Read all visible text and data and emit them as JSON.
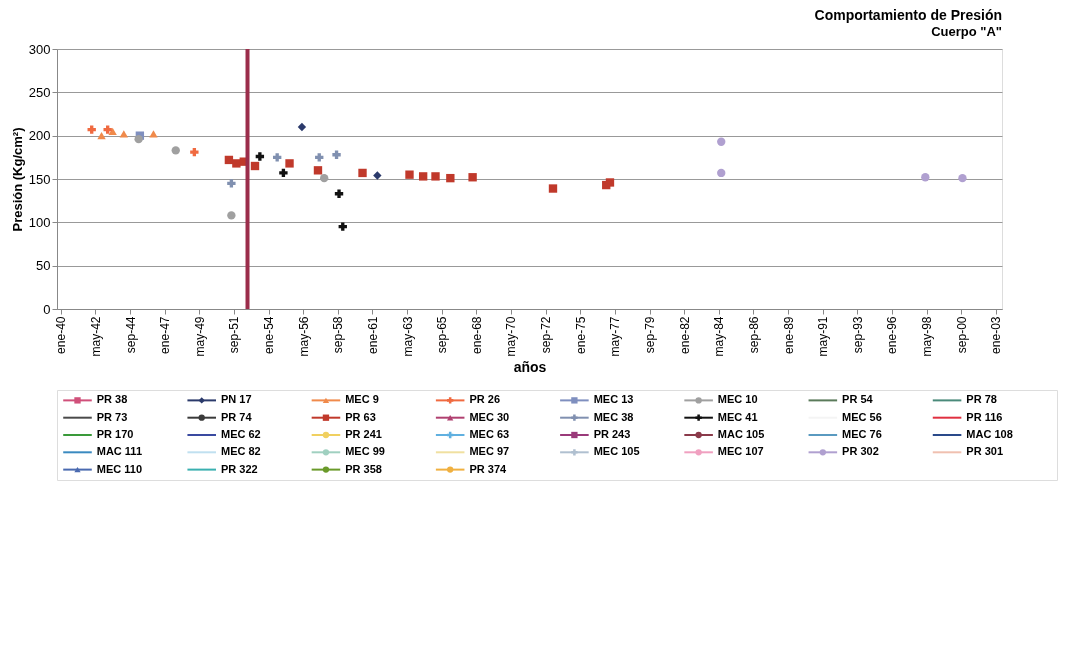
{
  "chart_data": {
    "type": "scatter",
    "title": "Comportamiento de Presión",
    "subtitle": "Cuerpo \"A\"",
    "xlabel": "años",
    "ylabel": "Presión (Kg/cm²)",
    "xlim": [
      "1939-10",
      "2003-06"
    ],
    "ylim": [
      0,
      300
    ],
    "yticks": [
      0,
      50,
      100,
      150,
      200,
      250,
      300
    ],
    "grid": "y",
    "legend": "bottom",
    "xticks": [
      {
        "value": "1940-01",
        "label": "ene-40"
      },
      {
        "value": "1942-05",
        "label": "may-42"
      },
      {
        "value": "1944-09",
        "label": "sep-44"
      },
      {
        "value": "1947-01",
        "label": "ene-47"
      },
      {
        "value": "1949-05",
        "label": "may-49"
      },
      {
        "value": "1951-09",
        "label": "sep-51"
      },
      {
        "value": "1954-01",
        "label": "ene-54"
      },
      {
        "value": "1956-05",
        "label": "may-56"
      },
      {
        "value": "1958-09",
        "label": "sep-58"
      },
      {
        "value": "1961-01",
        "label": "ene-61"
      },
      {
        "value": "1963-05",
        "label": "may-63"
      },
      {
        "value": "1965-09",
        "label": "sep-65"
      },
      {
        "value": "1968-01",
        "label": "ene-68"
      },
      {
        "value": "1970-05",
        "label": "may-70"
      },
      {
        "value": "1972-09",
        "label": "sep-72"
      },
      {
        "value": "1975-01",
        "label": "ene-75"
      },
      {
        "value": "1977-05",
        "label": "may-77"
      },
      {
        "value": "1979-09",
        "label": "sep-79"
      },
      {
        "value": "1982-01",
        "label": "ene-82"
      },
      {
        "value": "1984-05",
        "label": "may-84"
      },
      {
        "value": "1986-09",
        "label": "sep-86"
      },
      {
        "value": "1989-01",
        "label": "ene-89"
      },
      {
        "value": "1991-05",
        "label": "may-91"
      },
      {
        "value": "1993-09",
        "label": "sep-93"
      },
      {
        "value": "1996-01",
        "label": "ene-96"
      },
      {
        "value": "1998-05",
        "label": "may-98"
      },
      {
        "value": "2000-09",
        "label": "sep-00"
      },
      {
        "value": "2003-01",
        "label": "ene-03"
      }
    ],
    "ref_lines": [
      {
        "axis": "x",
        "value": "1952-08",
        "label": null,
        "color": "#9b2d4b"
      }
    ],
    "series": [
      {
        "name": "PR 38",
        "color": "#d0507a",
        "marker": "square"
      },
      {
        "name": "PN 17",
        "color": "#2b3a6b",
        "marker": "diamond",
        "x": [
          "1956-04",
          "1961-05"
        ],
        "values": [
          210,
          154
        ]
      },
      {
        "name": "MEC 9",
        "color": "#f08a4b",
        "marker": "triangle",
        "x": [
          "1942-10",
          "1943-07",
          "1944-04",
          "1946-04"
        ],
        "values": [
          200,
          205,
          202,
          202
        ]
      },
      {
        "name": "PR 26",
        "color": "#f06a40",
        "marker": "cross",
        "x": [
          "1942-02",
          "1943-03",
          "1949-01"
        ],
        "values": [
          207,
          207,
          181
        ]
      },
      {
        "name": "MEC 13",
        "color": "#7f8fbf",
        "marker": "square",
        "x": [
          "1945-05"
        ],
        "values": [
          200
        ]
      },
      {
        "name": "MEC 10",
        "color": "#a0a0a0",
        "marker": "circle",
        "x": [
          "1945-04",
          "1947-10",
          "1951-07",
          "1957-10"
        ],
        "values": [
          196,
          183,
          108,
          151
        ]
      },
      {
        "name": "PR 54",
        "color": "#5a7a5a",
        "marker": "none"
      },
      {
        "name": "PR 78",
        "color": "#4a8a7a",
        "marker": "none"
      },
      {
        "name": "PR 73",
        "color": "#4a4a4a",
        "marker": "none"
      },
      {
        "name": "PR 74",
        "color": "#3a3a3a",
        "marker": "circle"
      },
      {
        "name": "PR 63",
        "color": "#c0392b",
        "marker": "square",
        "x": [
          "1951-05",
          "1951-11",
          "1952-05",
          "1953-02",
          "1955-06",
          "1957-05",
          "1960-05",
          "1963-07",
          "1964-06",
          "1965-04",
          "1966-04",
          "1967-10",
          "1973-03",
          "1976-10",
          "1977-01"
        ],
        "values": [
          172,
          168,
          170,
          165,
          168,
          160,
          157,
          155,
          153,
          153,
          151,
          152,
          139,
          143,
          146
        ]
      },
      {
        "name": "MEC 30",
        "color": "#b04070",
        "marker": "triangle"
      },
      {
        "name": "MEC 38",
        "color": "#8090b0",
        "marker": "cross",
        "x": [
          "1951-07",
          "1954-08",
          "1957-06",
          "1958-08"
        ],
        "values": [
          145,
          175,
          175,
          178
        ]
      },
      {
        "name": "MEC 41",
        "color": "#111111",
        "marker": "cross",
        "x": [
          "1953-06",
          "1955-01",
          "1958-10",
          "1959-01"
        ],
        "values": [
          176,
          157,
          133,
          95
        ]
      },
      {
        "name": "MEC 56",
        "color": "#f4f4f4",
        "marker": "none"
      },
      {
        "name": "PR 116",
        "color": "#e03040",
        "marker": "none"
      },
      {
        "name": "PR 170",
        "color": "#3a9a3a",
        "marker": "none"
      },
      {
        "name": "MEC 62",
        "color": "#3a4aa0",
        "marker": "none"
      },
      {
        "name": "PR 241",
        "color": "#f0d060",
        "marker": "circle"
      },
      {
        "name": "MEC 63",
        "color": "#60b0e0",
        "marker": "cross"
      },
      {
        "name": "PR 243",
        "color": "#9a3a7a",
        "marker": "square"
      },
      {
        "name": "MAC 105",
        "color": "#8a3a4a",
        "marker": "circle"
      },
      {
        "name": "MEC 76",
        "color": "#5a9ac0",
        "marker": "none"
      },
      {
        "name": "MAC 108",
        "color": "#2a4a8a",
        "marker": "none"
      },
      {
        "name": "MAC 111",
        "color": "#3a8ac0",
        "marker": "none"
      },
      {
        "name": "MEC 82",
        "color": "#c0e0f0",
        "marker": "none"
      },
      {
        "name": "MEC 99",
        "color": "#a0d0c0",
        "marker": "circle"
      },
      {
        "name": "MEC 97",
        "color": "#f0e0a0",
        "marker": "none"
      },
      {
        "name": "MEC 105",
        "color": "#b0c0d0",
        "marker": "cross"
      },
      {
        "name": "MEC 107",
        "color": "#f0a0c0",
        "marker": "circle"
      },
      {
        "name": "PR 302",
        "color": "#b0a0d0",
        "marker": "circle",
        "x": [
          "1984-07",
          "1984-07",
          "1998-04",
          "2000-10"
        ],
        "values": [
          193,
          157,
          152,
          151
        ]
      },
      {
        "name": "PR 301",
        "color": "#f0c0b0",
        "marker": "none"
      },
      {
        "name": "MEC 110",
        "color": "#4a6ab0",
        "marker": "triangle"
      },
      {
        "name": "PR 322",
        "color": "#3ab0b0",
        "marker": "none"
      },
      {
        "name": "PR 358",
        "color": "#6a9a2a",
        "marker": "circle"
      },
      {
        "name": "PR 374",
        "color": "#f0b040",
        "marker": "circle"
      }
    ]
  }
}
